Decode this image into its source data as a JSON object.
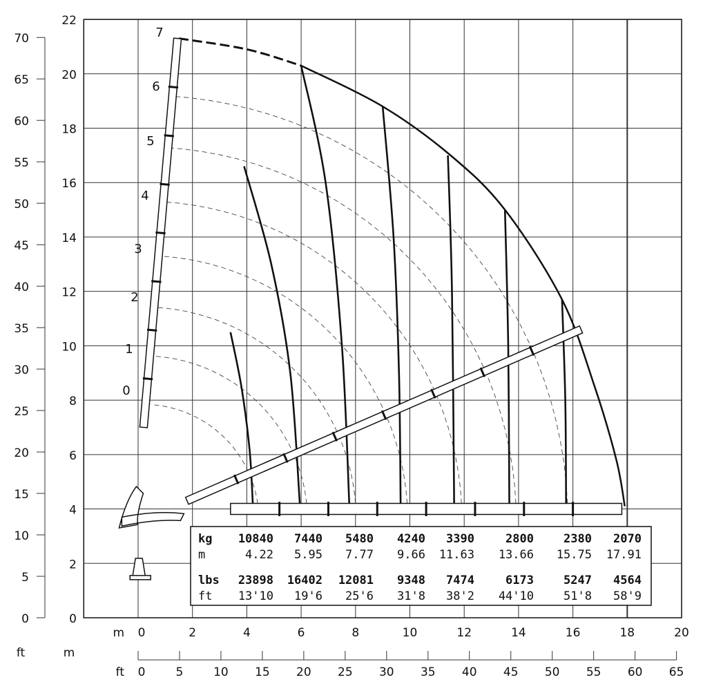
{
  "chart_data": {
    "type": "line",
    "title": "",
    "x_axis": {
      "unit": "m",
      "range": [
        -2,
        20
      ],
      "ticks": [
        0,
        2,
        4,
        6,
        8,
        10,
        12,
        14,
        16,
        18,
        20
      ]
    },
    "y_axis": {
      "unit": "m",
      "range": [
        0,
        22
      ],
      "ticks": [
        0,
        2,
        4,
        6,
        8,
        10,
        12,
        14,
        16,
        18,
        20,
        22
      ]
    },
    "y_axis_ft": {
      "unit": "ft",
      "ticks": [
        0,
        5,
        10,
        15,
        20,
        25,
        30,
        35,
        40,
        45,
        50,
        55,
        60,
        65,
        70
      ]
    },
    "x_axis_ft": {
      "unit_top": "m",
      "unit_bottom": "ft",
      "left_label_ft": "ft",
      "left_label_m": "m",
      "ticks": [
        0,
        5,
        10,
        15,
        20,
        25,
        30,
        35,
        40,
        45,
        50,
        55,
        60,
        65
      ]
    },
    "grid": true,
    "boom_sections": [
      "0",
      "1",
      "2",
      "3",
      "4",
      "5",
      "6",
      "7"
    ],
    "envelope": [
      [
        1.5,
        21.3
      ],
      [
        4,
        20.9
      ],
      [
        6,
        20.3
      ],
      [
        9,
        18.8
      ],
      [
        11.5,
        17
      ],
      [
        13.5,
        15
      ],
      [
        15.6,
        11.7
      ],
      [
        16.8,
        8.5
      ],
      [
        17.6,
        5.8
      ],
      [
        17.91,
        4.1
      ]
    ],
    "load_curves": [
      [
        [
          3.4,
          10.5
        ],
        [
          3.8,
          8.5
        ],
        [
          4.1,
          6.2
        ],
        [
          4.22,
          4.2
        ]
      ],
      [
        [
          3.9,
          16.6
        ],
        [
          4.9,
          13
        ],
        [
          5.6,
          9
        ],
        [
          5.95,
          4.2
        ]
      ],
      [
        [
          6,
          20.3
        ],
        [
          6.9,
          16
        ],
        [
          7.5,
          10
        ],
        [
          7.77,
          4.2
        ]
      ],
      [
        [
          9,
          18.8
        ],
        [
          9.4,
          14
        ],
        [
          9.6,
          9
        ],
        [
          9.66,
          4.2
        ]
      ],
      [
        [
          11.4,
          17
        ],
        [
          11.55,
          12
        ],
        [
          11.63,
          4.2
        ]
      ],
      [
        [
          13.5,
          15
        ],
        [
          13.62,
          10
        ],
        [
          13.66,
          4.2
        ]
      ],
      [
        [
          15.6,
          11.7
        ],
        [
          15.72,
          8
        ],
        [
          15.75,
          4.2
        ]
      ]
    ],
    "table": {
      "rows": [
        {
          "label": "kg",
          "bold": true,
          "values": [
            "10840",
            "7440",
            "5480",
            "4240",
            "3390",
            "2800",
            "2380",
            "2070"
          ]
        },
        {
          "label": "m",
          "bold": false,
          "values": [
            "4.22",
            "5.95",
            "7.77",
            "9.66",
            "11.63",
            "13.66",
            "15.75",
            "17.91"
          ]
        },
        {
          "label": "lbs",
          "bold": true,
          "values": [
            "23898",
            "16402",
            "12081",
            "9348",
            "7474",
            "6173",
            "5247",
            "4564"
          ]
        },
        {
          "label": "ft",
          "bold": false,
          "values": [
            "13'10",
            "19'6",
            "25'6",
            "31'8",
            "38'2",
            "44'10",
            "51'8",
            "58'9"
          ]
        }
      ]
    }
  }
}
